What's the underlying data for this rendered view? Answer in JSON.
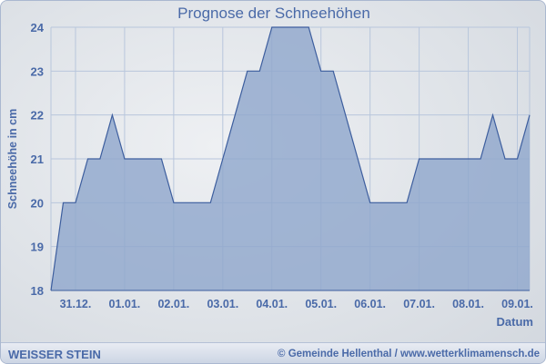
{
  "chart_data": {
    "type": "area",
    "title": "Prognose der Schneehöhen",
    "xlabel": "Datum",
    "ylabel": "Schneehöhe in cm",
    "ylim": [
      18,
      24
    ],
    "yticks": [
      18,
      19,
      20,
      21,
      22,
      23,
      24
    ],
    "xtick_labels": [
      "31.12.",
      "01.01.",
      "02.01.",
      "03.01.",
      "04.01.",
      "05.01.",
      "06.01.",
      "07.01.",
      "08.01.",
      "09.01."
    ],
    "points_per_day": 4,
    "values": [
      18,
      20,
      20,
      21,
      21,
      22,
      21,
      21,
      21,
      21,
      20,
      20,
      20,
      20,
      21,
      22,
      23,
      23,
      24,
      24,
      24,
      24,
      23,
      23,
      22,
      21,
      20,
      20,
      20,
      20,
      21,
      21,
      21,
      21,
      21,
      21,
      22,
      21,
      21,
      22
    ],
    "grid": true,
    "colors": {
      "fill": "#8fa6cc",
      "line": "#3d5e9e",
      "text": "#4a6aa8"
    }
  },
  "footer": {
    "brand": "WEISSER STEIN",
    "copyright": "© Gemeinde Hellenthal / www.wetterklimamensch.de"
  }
}
